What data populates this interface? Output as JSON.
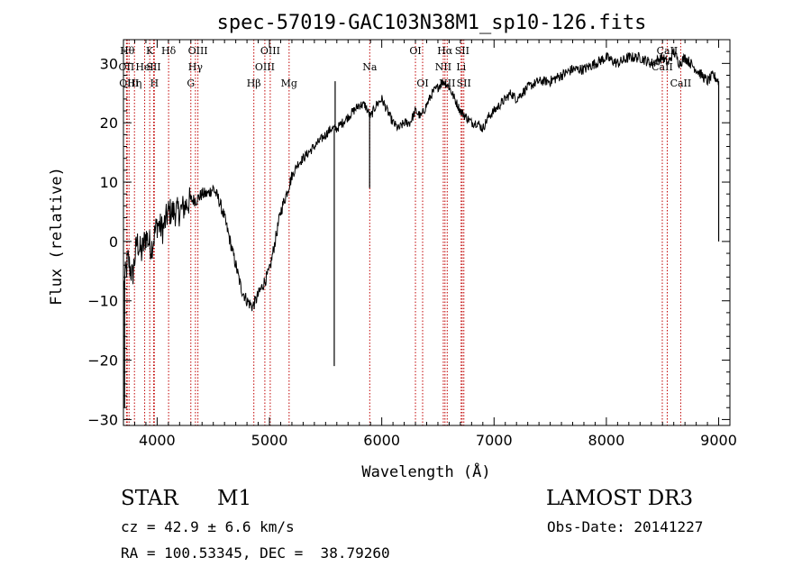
{
  "chart_data": {
    "type": "line",
    "title": "spec-57019-GAC103N38M1_sp10-126.fits",
    "xlabel": "Wavelength (Å)",
    "ylabel": "Flux (relative)",
    "xlim": [
      3700,
      9100
    ],
    "ylim": [
      -31,
      34
    ],
    "x_ticks": [
      4000,
      5000,
      6000,
      7000,
      8000,
      9000
    ],
    "y_ticks": [
      -30,
      -20,
      -10,
      0,
      10,
      20,
      30
    ],
    "grid": false,
    "line_color": "#000000",
    "marker_color": "#c00000",
    "series": [
      {
        "x": [
          3700,
          3740,
          3780,
          3820,
          3860,
          3900,
          3950,
          4000,
          4050,
          4100,
          4150,
          4200,
          4250,
          4300,
          4350,
          4400,
          4450,
          4500,
          4550,
          4600,
          4650,
          4700,
          4750,
          4800,
          4850,
          4900,
          4950,
          5000,
          5050,
          5100,
          5150,
          5200,
          5250,
          5300,
          5350,
          5400,
          5450,
          5500,
          5550,
          5600,
          5650,
          5700,
          5750,
          5800,
          5850,
          5900,
          5950,
          6000,
          6050,
          6100,
          6150,
          6200,
          6250,
          6300,
          6350,
          6400,
          6450,
          6500,
          6550,
          6600,
          6650,
          6700,
          6750,
          6800,
          6850,
          6900,
          6950,
          7000,
          7050,
          7100,
          7150,
          7200,
          7300,
          7400,
          7500,
          7600,
          7700,
          7800,
          7900,
          8000,
          8100,
          8200,
          8300,
          8400,
          8500,
          8550,
          8600,
          8650,
          8700,
          8750,
          8800,
          8850,
          8900,
          8950,
          9000
        ],
        "y": [
          -8,
          -3,
          -6,
          0,
          -2,
          1,
          -1,
          3,
          2,
          5,
          5,
          5,
          6,
          7,
          7,
          8,
          8,
          9,
          7,
          4,
          0,
          -4,
          -8,
          -10,
          -11,
          -9,
          -7,
          -5,
          0,
          5,
          8,
          11,
          13,
          14,
          15,
          16,
          17,
          18,
          19,
          19,
          20,
          21,
          22,
          23,
          23,
          21,
          23,
          24,
          22,
          20,
          19,
          20,
          20,
          22,
          21,
          23,
          25,
          26,
          27,
          26,
          24,
          22,
          21,
          20,
          20,
          19,
          21,
          22,
          23,
          24,
          25,
          24,
          26,
          27,
          27,
          28,
          29,
          29,
          30,
          31,
          30,
          31,
          31,
          30,
          31,
          30,
          32,
          30,
          31,
          30,
          29,
          28,
          27,
          28,
          27
        ]
      }
    ],
    "spikes": [
      {
        "x": 5577,
        "y": -21
      },
      {
        "x": 5585,
        "y": 27
      },
      {
        "x": 5892,
        "y": 9
      },
      {
        "x": 3710,
        "y": -28
      },
      {
        "x": 9000,
        "y": 0
      }
    ],
    "lines": [
      {
        "x": 3734,
        "label": "Hθ",
        "row": 1
      },
      {
        "x": 3727,
        "label": "OII",
        "row": 2
      },
      {
        "x": 3750,
        "label": "OIII",
        "row": 3
      },
      {
        "x": 3798,
        "label": "Hη",
        "row": 3
      },
      {
        "x": 3889,
        "label": "HeI",
        "row": 2
      },
      {
        "x": 3934,
        "label": "K",
        "row": 1
      },
      {
        "x": 3969,
        "label": "SII",
        "row": 2
      },
      {
        "x": 3975,
        "label": "H",
        "row": 3
      },
      {
        "x": 4102,
        "label": "Hδ",
        "row": 1
      },
      {
        "x": 4300,
        "label": "G",
        "row": 3
      },
      {
        "x": 4341,
        "label": "Hγ",
        "row": 2
      },
      {
        "x": 4363,
        "label": "OIII",
        "row": 1
      },
      {
        "x": 4861,
        "label": "Hβ",
        "row": 3
      },
      {
        "x": 4959,
        "label": "OIII",
        "row": 2
      },
      {
        "x": 5007,
        "label": "OIII",
        "row": 1
      },
      {
        "x": 5175,
        "label": "Mg",
        "row": 3
      },
      {
        "x": 5893,
        "label": "Na",
        "row": 2
      },
      {
        "x": 6300,
        "label": "OI",
        "row": 1
      },
      {
        "x": 6364,
        "label": "OI",
        "row": 3
      },
      {
        "x": 6548,
        "label": "NII",
        "row": 2
      },
      {
        "x": 6563,
        "label": "Hα",
        "row": 1
      },
      {
        "x": 6583,
        "label": "NII",
        "row": 3
      },
      {
        "x": 6707,
        "label": "Li",
        "row": 2
      },
      {
        "x": 6716,
        "label": "SII",
        "row": 1
      },
      {
        "x": 6731,
        "label": "SII",
        "row": 3
      },
      {
        "x": 8498,
        "label": "CaII",
        "row": 2
      },
      {
        "x": 8542,
        "label": "CaII",
        "row": 1
      },
      {
        "x": 8662,
        "label": "CaII",
        "row": 3
      }
    ]
  },
  "info": {
    "class_label": "STAR",
    "subclass_label": "M1",
    "survey_label": "LAMOST DR3",
    "redshift_text": "cz = 42.9 ± 6.6 km/s",
    "obsdate_text": "Obs-Date: 20141227",
    "coords_text": "RA = 100.53345, DEC =  38.79260"
  }
}
